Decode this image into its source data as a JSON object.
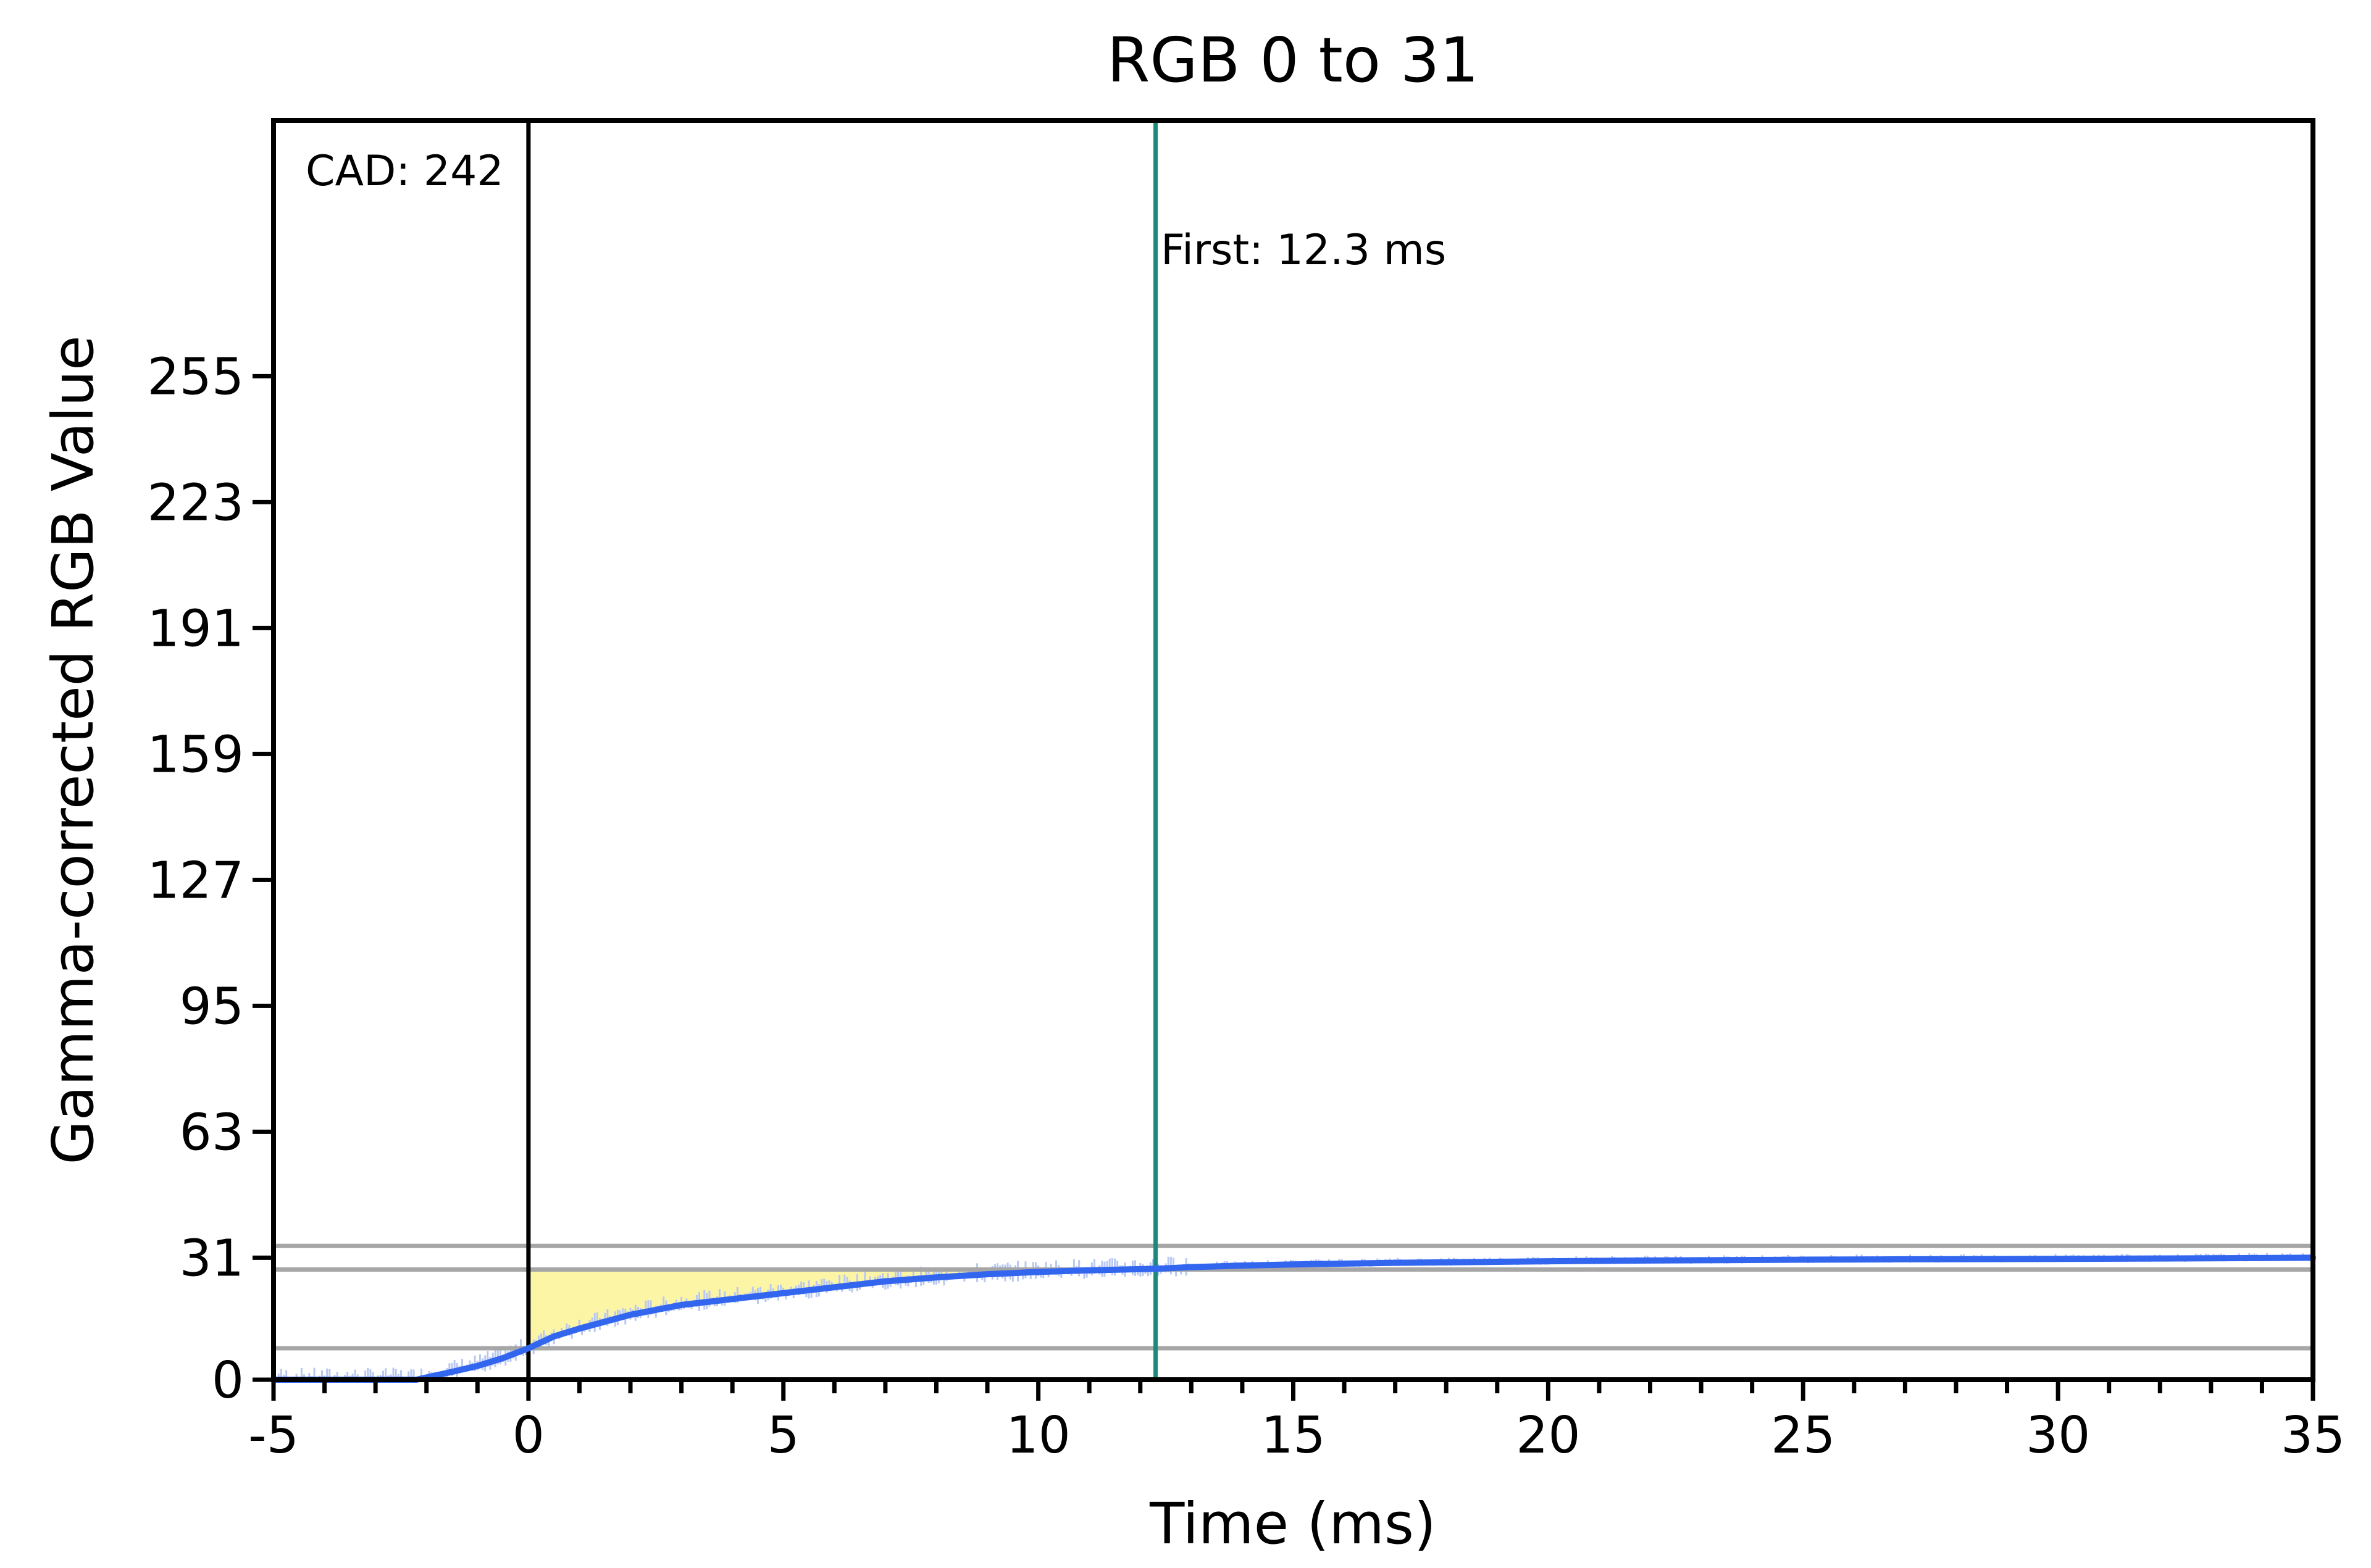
{
  "chart_data": {
    "type": "line",
    "title": "RGB 0 to 31",
    "xlabel": "Time (ms)",
    "ylabel": "Gamma-corrected RGB Value",
    "xlim": [
      -5,
      35
    ],
    "ylim": [
      0,
      320
    ],
    "x_ticks": [
      -5,
      0,
      5,
      10,
      15,
      20,
      25,
      30,
      35
    ],
    "x_tick_labels": [
      "-5",
      "0",
      "5",
      "10",
      "15",
      "20",
      "25",
      "30",
      "35"
    ],
    "x_minor_step": 1,
    "y_ticks": [
      0,
      31,
      63,
      95,
      127,
      159,
      191,
      223,
      255
    ],
    "y_tick_labels": [
      "0",
      "31",
      "63",
      "95",
      "127",
      "159",
      "191",
      "223",
      "255"
    ],
    "grid": false,
    "reference_lines": {
      "horizontal": [
        8,
        28,
        34
      ],
      "vertical": [
        {
          "x": 0,
          "color": "#000000"
        },
        {
          "x": 12.3,
          "color": "#1a8a7a"
        }
      ]
    },
    "annotations": [
      {
        "text": "CAD: 242"
      },
      {
        "text": "First: 12.3 ms"
      }
    ],
    "shaded_region": {
      "x_start": 0,
      "x_end": 12.3,
      "upper": 28,
      "color": "#fdf5a6"
    },
    "series": [
      {
        "color": "#3366ee",
        "x": [
          -5,
          -3,
          -2.2,
          -1.5,
          -1,
          -0.5,
          0,
          0.5,
          1,
          2,
          3,
          4,
          5,
          6,
          7,
          8,
          9,
          10,
          11,
          12.3,
          13,
          14,
          15,
          17,
          20,
          22,
          25,
          27,
          30,
          32,
          35
        ],
        "y": [
          0,
          0,
          0,
          2,
          3.5,
          5.5,
          8,
          11,
          13,
          16.5,
          19,
          20.5,
          22,
          23.5,
          25,
          26,
          26.8,
          27.4,
          27.8,
          28.2,
          28.6,
          29,
          29.3,
          29.7,
          30.1,
          30.3,
          30.5,
          30.6,
          30.7,
          30.8,
          31
        ]
      }
    ],
    "noise_color": "#b8c8f0"
  }
}
